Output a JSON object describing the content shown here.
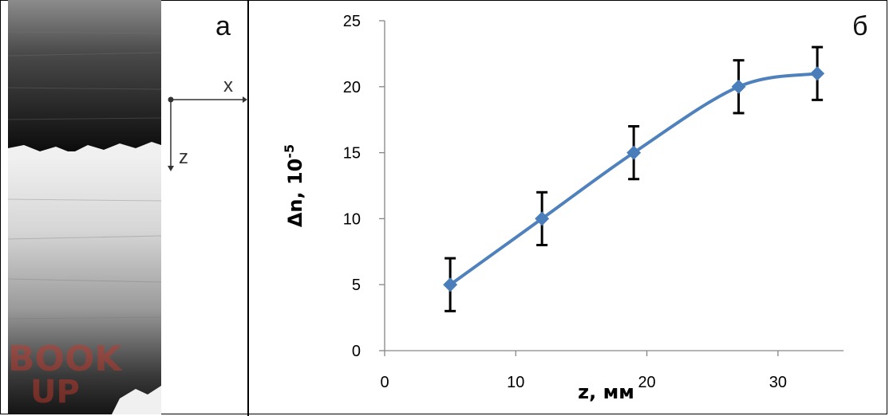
{
  "panels": {
    "left_label": "а",
    "right_label": "б"
  },
  "coord_axes": {
    "x_label": "x",
    "z_label": "z"
  },
  "watermark": {
    "line1": "BOOK",
    "line2": "UP"
  },
  "colors": {
    "series": "#4F81BD",
    "marker": "#4A7EBB",
    "error_bar": "#000000"
  },
  "chart_data": {
    "type": "line",
    "title": "",
    "xlabel": "z, мм",
    "ylabel": "Δn, 10",
    "ylabel_sup": "-5",
    "xlim": [
      0,
      35
    ],
    "ylim": [
      0,
      25
    ],
    "xticks": [
      0,
      10,
      20,
      30
    ],
    "yticks": [
      0,
      5,
      10,
      15,
      20,
      25
    ],
    "grid": false,
    "series": [
      {
        "x": [
          5,
          12,
          19,
          27,
          33
        ],
        "y": [
          5,
          10,
          15,
          20,
          21
        ],
        "error": [
          2,
          2,
          2,
          2,
          2
        ],
        "smooth": true,
        "marker": "diamond"
      }
    ]
  }
}
